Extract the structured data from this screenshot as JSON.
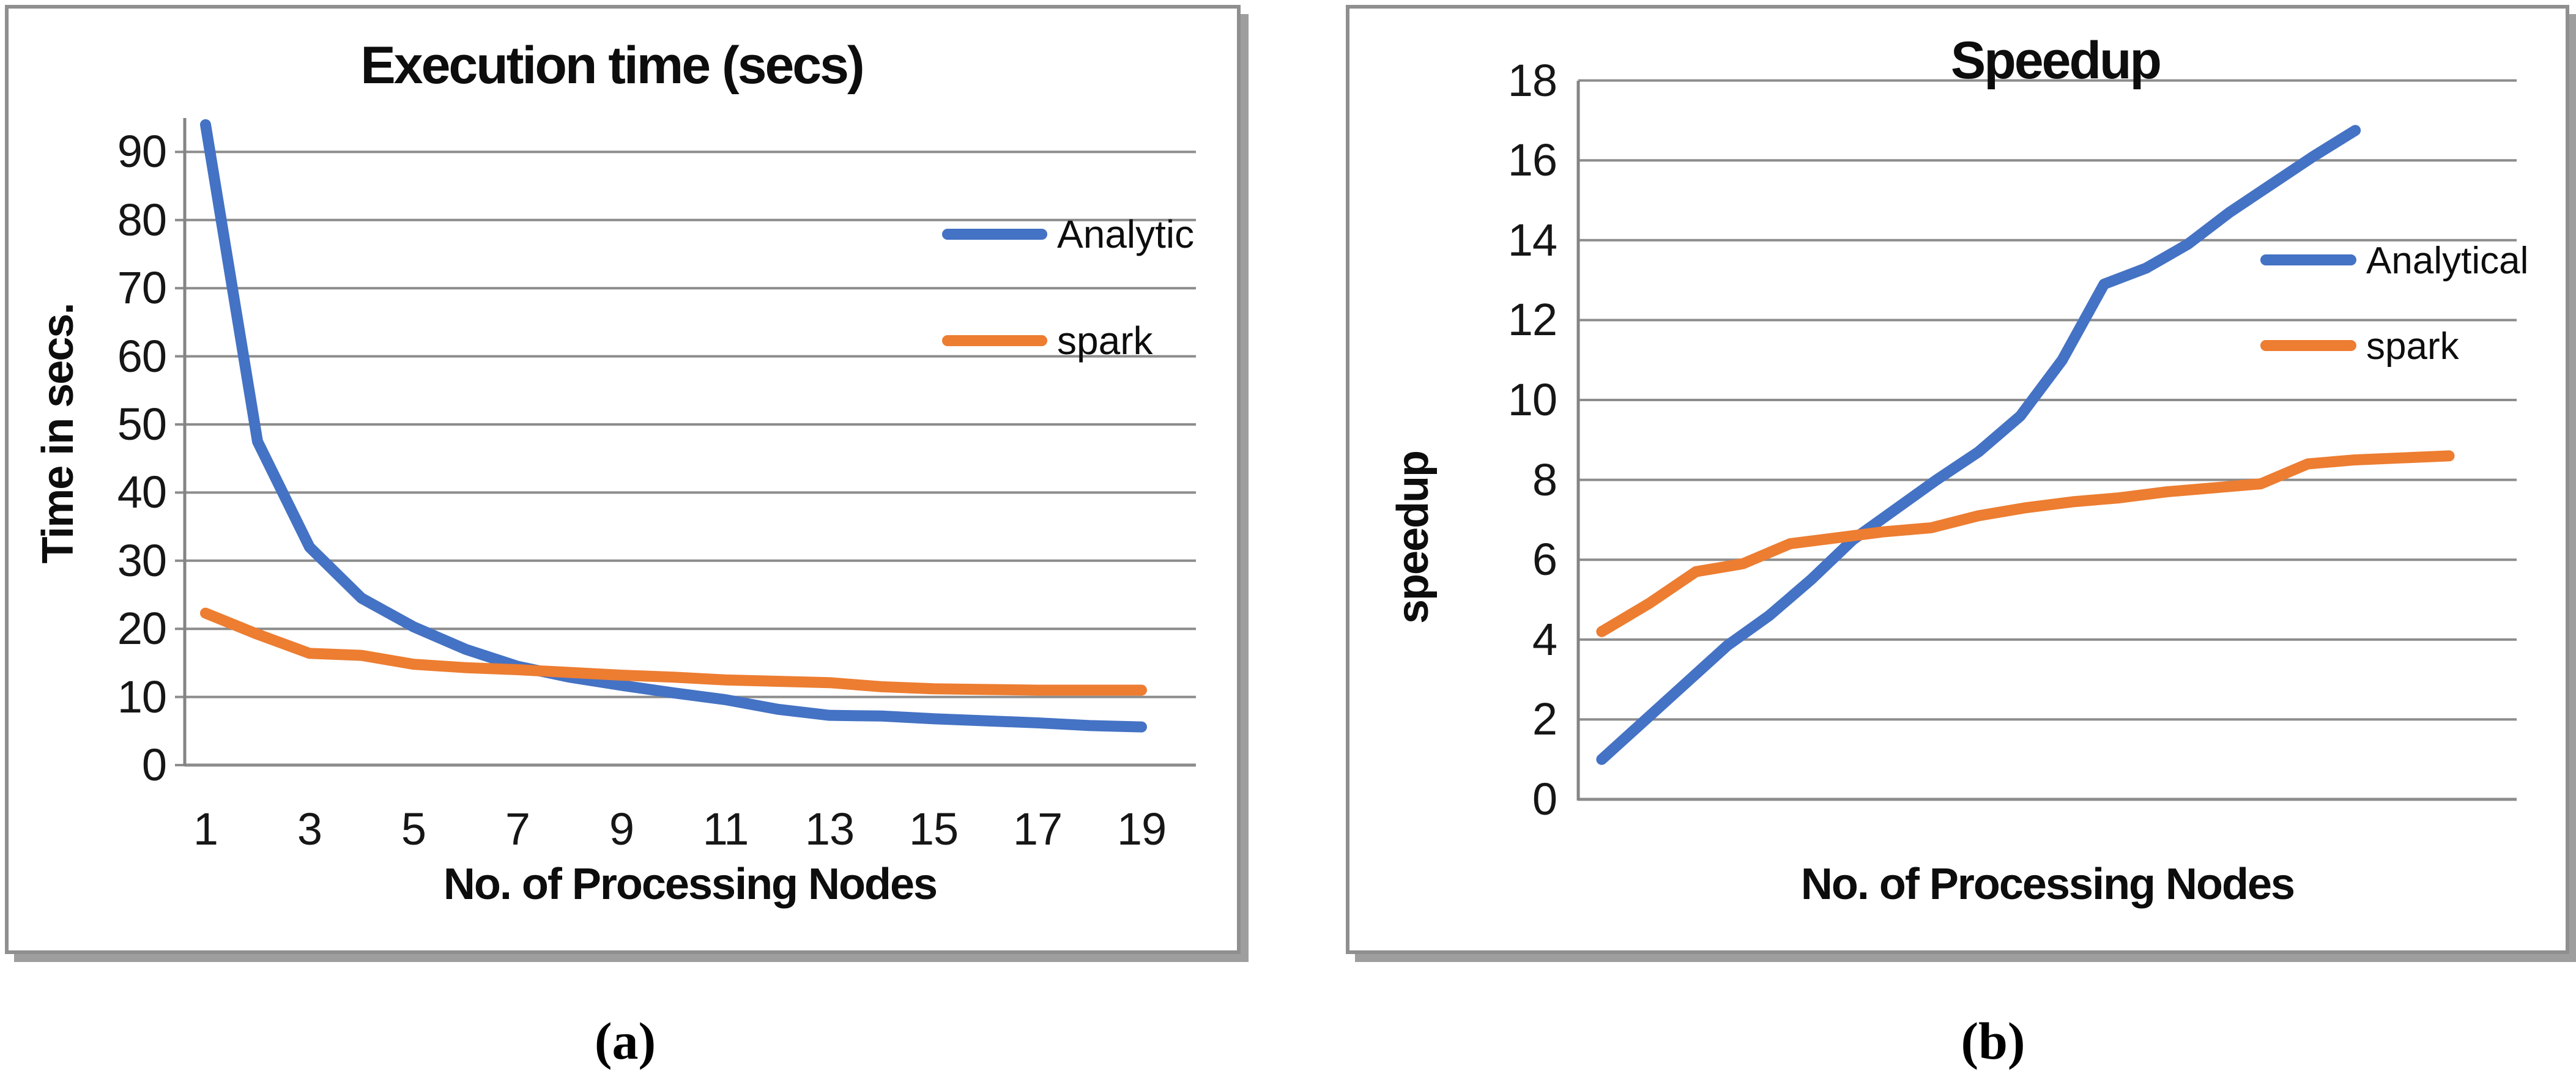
{
  "captions": [
    "(a)",
    "(b)"
  ],
  "colors": {
    "analytic_blue": "#4472C4",
    "spark_orange": "#ED7D31",
    "gridline_gray": "#8C8C8C",
    "axis_gray": "#848484",
    "panel_border_gray": "#8F8F8F"
  },
  "chart_data": [
    {
      "type": "line",
      "panel": "a",
      "title": "Execution time (secs)",
      "xlabel": "No. of Processing Nodes",
      "ylabel": "Time in secs.",
      "x": [
        1,
        2,
        3,
        4,
        5,
        6,
        7,
        8,
        9,
        10,
        11,
        12,
        13,
        14,
        15,
        16,
        17,
        18,
        19
      ],
      "x_tick_labels": [
        "1",
        "3",
        "5",
        "7",
        "9",
        "11",
        "13",
        "15",
        "17",
        "19"
      ],
      "ylim": [
        0,
        95
      ],
      "y_ticks": [
        0,
        10,
        20,
        30,
        40,
        50,
        60,
        70,
        80,
        90
      ],
      "grid": true,
      "legend_position": "inside-right",
      "series": [
        {
          "name": "Analytic",
          "color": "#4472C4",
          "values": [
            94,
            47.5,
            32,
            24.5,
            20.3,
            17,
            14.5,
            12.9,
            11.7,
            10.6,
            9.6,
            8.2,
            7.3,
            7.2,
            6.8,
            6.5,
            6.2,
            5.8,
            5.6
          ]
        },
        {
          "name": "spark",
          "color": "#ED7D31",
          "values": [
            22.3,
            19.2,
            16.4,
            16.1,
            14.8,
            14.3,
            14.0,
            13.6,
            13.2,
            12.9,
            12.5,
            12.3,
            12.1,
            11.5,
            11.2,
            11.1,
            11.0,
            11.0,
            11.0
          ]
        }
      ]
    },
    {
      "type": "line",
      "panel": "b",
      "title": "Speedup",
      "xlabel": "No. of Processing Nodes",
      "ylabel": "speedup",
      "x": [
        1,
        2,
        3,
        4,
        5,
        6,
        7,
        8,
        9,
        10,
        11,
        12,
        13,
        14,
        15,
        16,
        17,
        18,
        19
      ],
      "x_tick_labels": [],
      "ylim": [
        0,
        18
      ],
      "y_ticks": [
        0,
        2,
        4,
        6,
        8,
        10,
        12,
        14,
        16,
        18
      ],
      "grid": true,
      "legend_position": "inside-right",
      "series": [
        {
          "name": "Analytical",
          "color": "#4472C4",
          "values": [
            1.0,
            1.95,
            2.9,
            3.85,
            4.6,
            5.5,
            6.5,
            7.25,
            8.0,
            8.7,
            9.6,
            11.0,
            12.9,
            13.3,
            13.9,
            14.7,
            15.4,
            16.1,
            16.75
          ]
        },
        {
          "name": "spark",
          "color": "#ED7D31",
          "values": [
            4.2,
            4.9,
            5.7,
            5.9,
            6.4,
            6.55,
            6.7,
            6.8,
            7.1,
            7.3,
            7.45,
            7.55,
            7.7,
            7.8,
            7.9,
            8.4,
            8.5,
            8.55,
            8.6
          ]
        }
      ]
    }
  ]
}
